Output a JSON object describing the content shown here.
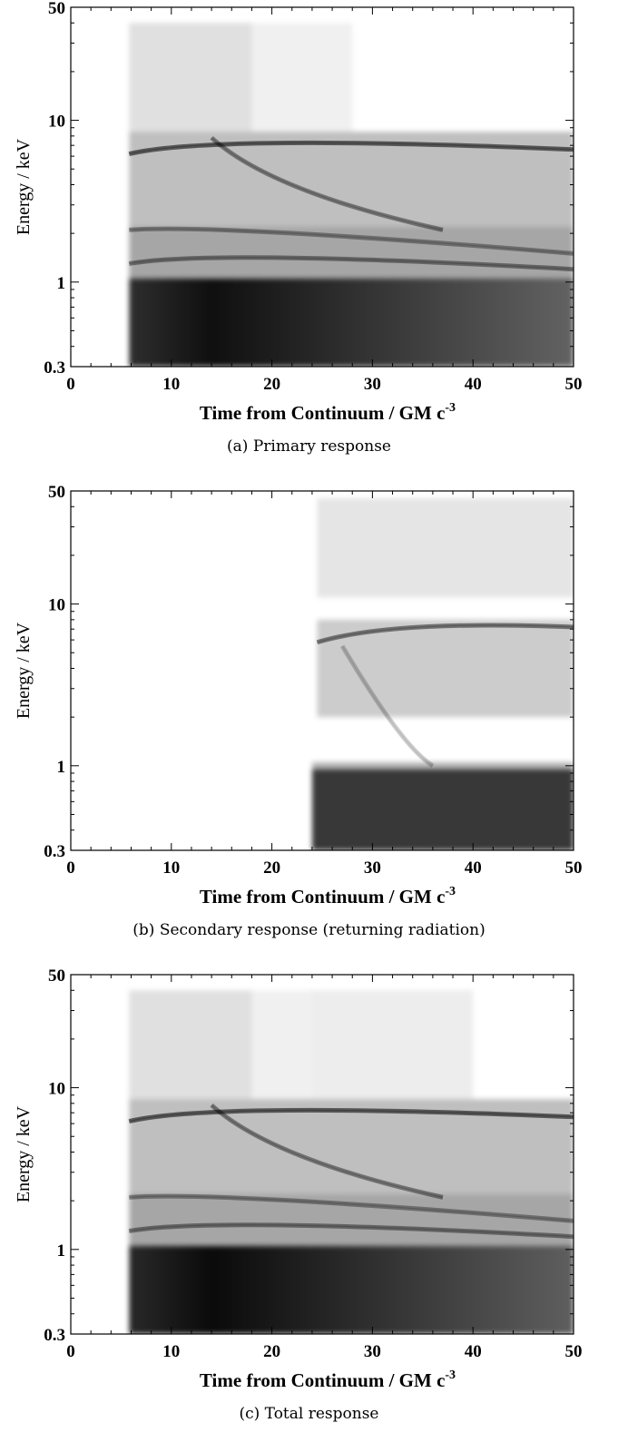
{
  "chart_data": [
    {
      "type": "heatmap",
      "caption": "(a) Primary response",
      "xlabel": "Time from Continuum / GM c",
      "xlabel_sup": "-3",
      "ylabel": "Energy / keV",
      "xlim": [
        0,
        50
      ],
      "ylim": [
        0.3,
        50
      ],
      "yscale": "log",
      "x_ticks": [
        "0",
        "10",
        "20",
        "30",
        "40",
        "50"
      ],
      "y_ticks": [
        "0.3",
        "1",
        "10",
        "50"
      ],
      "colormap": "greys",
      "features": [
        {
          "kind": "band",
          "x": [
            5.8,
            50
          ],
          "y": [
            0.3,
            1.05
          ],
          "level": 0.82,
          "taper_x": [
            14,
            50
          ]
        },
        {
          "kind": "band",
          "x": [
            5.8,
            50
          ],
          "y": [
            1.05,
            2.2
          ],
          "level": 0.35
        },
        {
          "kind": "band",
          "x": [
            5.8,
            50
          ],
          "y": [
            2.2,
            8.5
          ],
          "level": 0.25
        },
        {
          "kind": "band",
          "x": [
            5.8,
            18
          ],
          "y": [
            8.5,
            40
          ],
          "level": 0.12
        },
        {
          "kind": "band",
          "x": [
            18,
            28
          ],
          "y": [
            8.5,
            40
          ],
          "level": 0.06
        },
        {
          "kind": "ridge",
          "points": [
            [
              5.8,
              6.2
            ],
            [
              14,
              8.2
            ],
            [
              50,
              6.6
            ]
          ],
          "level": 0.55
        },
        {
          "kind": "ridge",
          "points": [
            [
              14,
              7.8
            ],
            [
              20,
              3.6
            ],
            [
              37,
              2.1
            ]
          ],
          "level": 0.4
        },
        {
          "kind": "ridge",
          "points": [
            [
              5.8,
              2.1
            ],
            [
              14,
              2.3
            ],
            [
              50,
              1.5
            ]
          ],
          "level": 0.35
        },
        {
          "kind": "ridge",
          "points": [
            [
              5.8,
              1.3
            ],
            [
              14,
              1.6
            ],
            [
              50,
              1.2
            ]
          ],
          "level": 0.4
        }
      ]
    },
    {
      "type": "heatmap",
      "caption": "(b) Secondary response (returning radiation)",
      "xlabel": "Time from Continuum / GM c",
      "xlabel_sup": "-3",
      "ylabel": "Energy / keV",
      "xlim": [
        0,
        50
      ],
      "ylim": [
        0.3,
        50
      ],
      "yscale": "log",
      "x_ticks": [
        "0",
        "10",
        "20",
        "30",
        "40",
        "50"
      ],
      "y_ticks": [
        "0.3",
        "1",
        "10",
        "50"
      ],
      "colormap": "greys",
      "features": [
        {
          "kind": "band",
          "x": [
            24,
            50
          ],
          "y": [
            0.3,
            0.95
          ],
          "level": 0.78
        },
        {
          "kind": "band",
          "x": [
            24,
            50
          ],
          "y": [
            0.95,
            1.05
          ],
          "level": 0.3
        },
        {
          "kind": "band",
          "x": [
            24.5,
            50
          ],
          "y": [
            2.0,
            8.0
          ],
          "level": 0.2
        },
        {
          "kind": "band",
          "x": [
            24.5,
            50
          ],
          "y": [
            11,
            45
          ],
          "level": 0.1
        },
        {
          "kind": "ridge",
          "points": [
            [
              24.5,
              5.8
            ],
            [
              32,
              8.0
            ],
            [
              50,
              7.2
            ]
          ],
          "level": 0.45
        },
        {
          "kind": "ridge",
          "points": [
            [
              27,
              5.5
            ],
            [
              33,
              1.3
            ],
            [
              36,
              1.0
            ]
          ],
          "level": 0.2
        }
      ]
    },
    {
      "type": "heatmap",
      "caption": "(c) Total response",
      "xlabel": "Time from Continuum / GM c",
      "xlabel_sup": "-3",
      "ylabel": "Energy / keV",
      "xlim": [
        0,
        50
      ],
      "ylim": [
        0.3,
        50
      ],
      "yscale": "log",
      "x_ticks": [
        "0",
        "10",
        "20",
        "30",
        "40",
        "50"
      ],
      "y_ticks": [
        "0.3",
        "1",
        "10",
        "50"
      ],
      "colormap": "greys",
      "features": [
        {
          "kind": "band",
          "x": [
            5.8,
            50
          ],
          "y": [
            0.3,
            1.05
          ],
          "level": 0.84,
          "taper_x": [
            14,
            50
          ]
        },
        {
          "kind": "band",
          "x": [
            5.8,
            50
          ],
          "y": [
            1.05,
            2.2
          ],
          "level": 0.35
        },
        {
          "kind": "band",
          "x": [
            5.8,
            50
          ],
          "y": [
            2.2,
            8.5
          ],
          "level": 0.25
        },
        {
          "kind": "band",
          "x": [
            5.8,
            18
          ],
          "y": [
            8.5,
            40
          ],
          "level": 0.12
        },
        {
          "kind": "band",
          "x": [
            18,
            24
          ],
          "y": [
            8.5,
            40
          ],
          "level": 0.06
        },
        {
          "kind": "band",
          "x": [
            24,
            40
          ],
          "y": [
            8.5,
            40
          ],
          "level": 0.07
        },
        {
          "kind": "ridge",
          "points": [
            [
              5.8,
              6.2
            ],
            [
              14,
              8.2
            ],
            [
              50,
              6.6
            ]
          ],
          "level": 0.55
        },
        {
          "kind": "ridge",
          "points": [
            [
              14,
              7.8
            ],
            [
              20,
              3.6
            ],
            [
              37,
              2.1
            ]
          ],
          "level": 0.4
        },
        {
          "kind": "ridge",
          "points": [
            [
              5.8,
              2.1
            ],
            [
              14,
              2.3
            ],
            [
              50,
              1.5
            ]
          ],
          "level": 0.35
        },
        {
          "kind": "ridge",
          "points": [
            [
              5.8,
              1.3
            ],
            [
              14,
              1.6
            ],
            [
              50,
              1.2
            ]
          ],
          "level": 0.4
        }
      ]
    }
  ]
}
